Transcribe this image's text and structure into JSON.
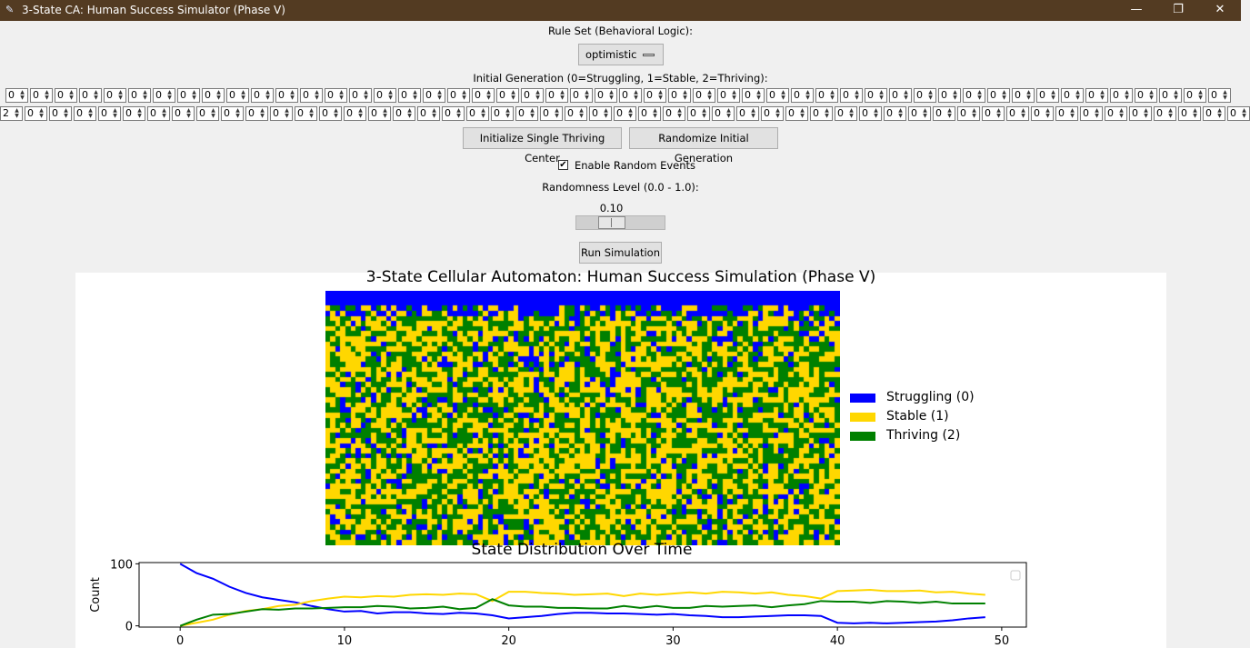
{
  "window": {
    "title": "3-State CA: Human Success Simulator (Phase V)",
    "icon": "feather-icon",
    "minimize_glyph": "—",
    "restore_glyph": "❐",
    "close_glyph": "✕"
  },
  "controls": {
    "rule_set_label": "Rule Set (Behavioral Logic):",
    "rule_set_value": "optimistic",
    "initial_gen_label": "Initial Generation (0=Struggling, 1=Stable, 2=Thriving):",
    "row1_values": [
      "0",
      "0",
      "0",
      "0",
      "0",
      "0",
      "0",
      "0",
      "0",
      "0",
      "0",
      "0",
      "0",
      "0",
      "0",
      "0",
      "0",
      "0",
      "0",
      "0",
      "0",
      "0",
      "0",
      "0",
      "0",
      "0",
      "0",
      "0",
      "0",
      "0",
      "0",
      "0",
      "0",
      "0",
      "0",
      "0",
      "0",
      "0",
      "0",
      "0",
      "0",
      "0",
      "0",
      "0",
      "0",
      "0",
      "0",
      "0",
      "0",
      "0"
    ],
    "row2_values": [
      "2",
      "0",
      "0",
      "0",
      "0",
      "0",
      "0",
      "0",
      "0",
      "0",
      "0",
      "0",
      "0",
      "0",
      "0",
      "0",
      "0",
      "0",
      "0",
      "0",
      "0",
      "0",
      "0",
      "0",
      "0",
      "0",
      "0",
      "0",
      "0",
      "0",
      "0",
      "0",
      "0",
      "0",
      "0",
      "0",
      "0",
      "0",
      "0",
      "0",
      "0",
      "0",
      "0",
      "0",
      "0",
      "0",
      "0",
      "0",
      "0",
      "0",
      "0"
    ],
    "init_center_label": "Initialize Single Thriving Center",
    "randomize_label": "Randomize Initial Generation",
    "random_events_label": "Enable Random Events",
    "random_events_checked": true,
    "check_glyph": "✔",
    "randomness_label": "Randomness Level (0.0 - 1.0):",
    "randomness_value": "0.10",
    "randomness_fraction": 0.1,
    "run_label": "Run Simulation"
  },
  "figure": {
    "ca_title": "3-State Cellular Automaton: Human Success Simulation (Phase V)",
    "colors": {
      "struggling": "#0000ff",
      "stable": "#ffd700",
      "thriving": "#008000"
    },
    "legend": [
      {
        "label": "Struggling (0)",
        "color": "#0000ff"
      },
      {
        "label": "Stable (1)",
        "color": "#ffd700"
      },
      {
        "label": "Thriving (2)",
        "color": "#008000"
      }
    ]
  },
  "chart_data": {
    "type": "line",
    "title": "State Distribution Over Time",
    "xlabel": "",
    "ylabel": "Count",
    "xlim": [
      -2.5,
      51.5
    ],
    "ylim": [
      -2,
      102
    ],
    "xticks": [
      0,
      10,
      20,
      30,
      40,
      50
    ],
    "yticks": [
      0,
      100
    ],
    "x": [
      0,
      1,
      2,
      3,
      4,
      5,
      6,
      7,
      8,
      9,
      10,
      11,
      12,
      13,
      14,
      15,
      16,
      17,
      18,
      19,
      20,
      21,
      22,
      23,
      24,
      25,
      26,
      27,
      28,
      29,
      30,
      31,
      32,
      33,
      34,
      35,
      36,
      37,
      38,
      39,
      40,
      41,
      42,
      43,
      44,
      45,
      46,
      47,
      48,
      49
    ],
    "series": [
      {
        "color": "#0000ff",
        "values": [
          100,
          85,
          76,
          63,
          53,
          46,
          42,
          38,
          32,
          27,
          23,
          24,
          20,
          22,
          22,
          20,
          19,
          21,
          20,
          17,
          12,
          14,
          16,
          19,
          21,
          21,
          20,
          20,
          19,
          18,
          19,
          17,
          16,
          14,
          14,
          15,
          16,
          17,
          17,
          16,
          5,
          4,
          5,
          4,
          5,
          6,
          7,
          9,
          12,
          14
        ]
      },
      {
        "color": "#ffd700",
        "values": [
          0,
          5,
          10,
          18,
          24,
          27,
          32,
          34,
          40,
          44,
          47,
          46,
          48,
          47,
          50,
          51,
          50,
          52,
          51,
          40,
          55,
          55,
          53,
          52,
          50,
          51,
          52,
          48,
          52,
          50,
          52,
          54,
          52,
          55,
          54,
          52,
          54,
          50,
          48,
          44,
          56,
          57,
          58,
          56,
          56,
          57,
          54,
          55,
          52,
          50
        ]
      },
      {
        "color": "#008000",
        "values": [
          0,
          10,
          18,
          19,
          23,
          27,
          26,
          28,
          28,
          29,
          30,
          30,
          32,
          31,
          28,
          29,
          31,
          27,
          29,
          43,
          33,
          31,
          31,
          29,
          29,
          28,
          28,
          32,
          29,
          32,
          29,
          29,
          32,
          31,
          32,
          33,
          30,
          33,
          35,
          40,
          39,
          39,
          37,
          40,
          39,
          37,
          39,
          36,
          36,
          36
        ]
      }
    ]
  }
}
